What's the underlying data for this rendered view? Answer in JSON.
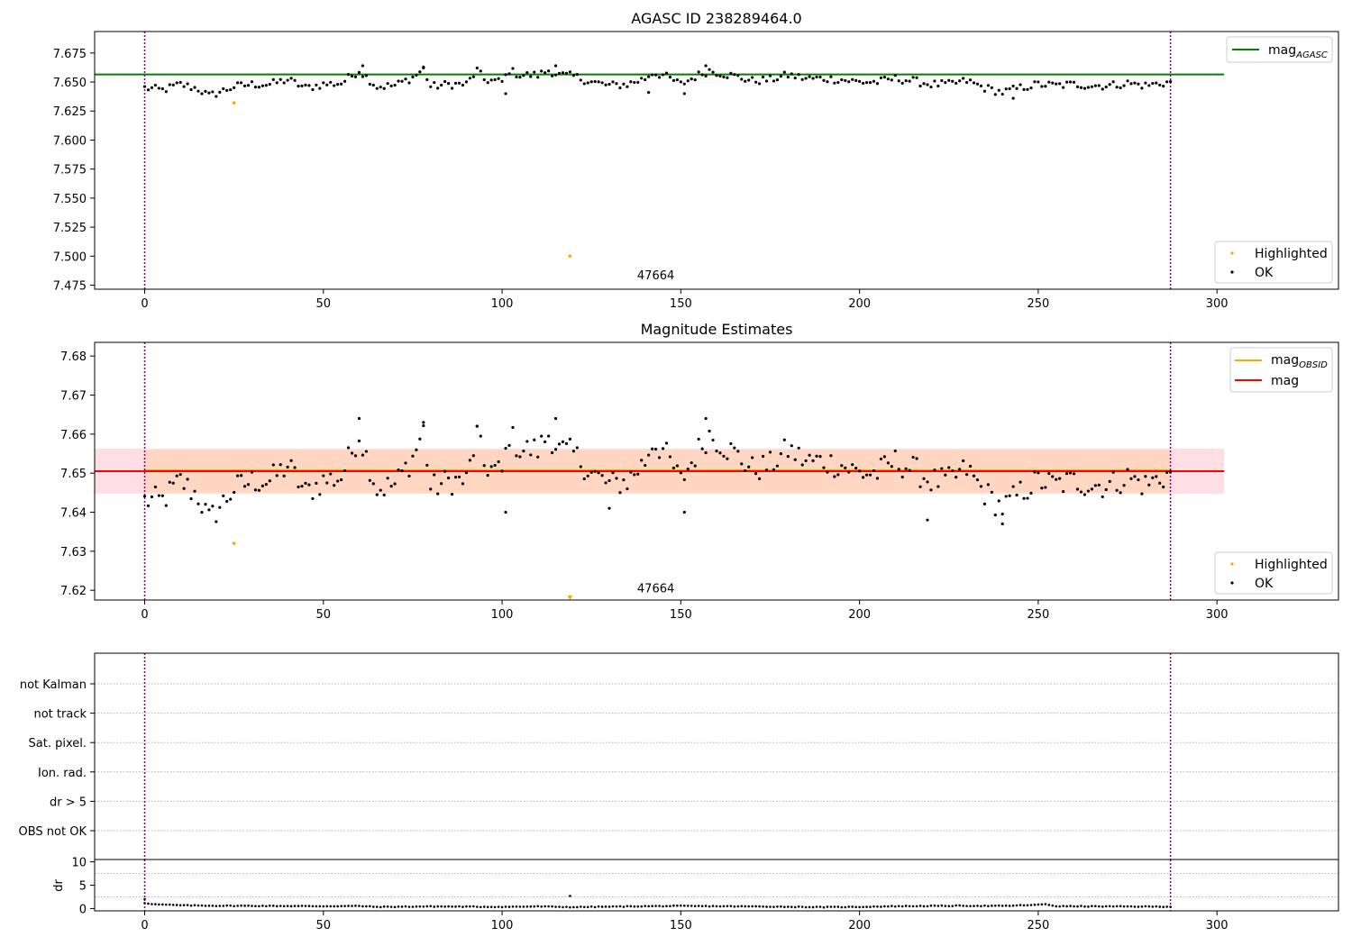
{
  "colors": {
    "agasc_line": "#008000",
    "obs_line": "#ffa500",
    "mean_line": "#ff0000",
    "band_outer": "#ffc0cb",
    "band_inner": "#ffd5bb",
    "highlight": "#ffa500",
    "ok": "#000000",
    "vline": "#800080"
  },
  "chart_data": [
    {
      "type": "scatter",
      "title": "AGASC ID 238289464.0",
      "xlim": [
        -14,
        334
      ],
      "ylim": [
        7.4715,
        7.6935
      ],
      "xticks": [
        "0",
        "50",
        "100",
        "150",
        "200",
        "250",
        "300"
      ],
      "yticks": [
        "7.475",
        "7.500",
        "7.525",
        "7.550",
        "7.575",
        "7.600",
        "7.625",
        "7.650",
        "7.675"
      ],
      "hline": {
        "label": "mag",
        "subscript": "AGASC",
        "y": 7.6565,
        "x_range": [
          -14,
          302
        ]
      },
      "vlines": [
        0,
        287
      ],
      "annotation": {
        "text": "47664",
        "x": 143,
        "y": 7.48
      },
      "legend": [
        {
          "label": "Highlighted"
        },
        {
          "label": "OK"
        }
      ],
      "highlighted_points": [
        [
          25,
          7.632
        ],
        [
          119,
          7.5
        ]
      ],
      "ok_anchors": [
        [
          0,
          7.645
        ],
        [
          5,
          7.643
        ],
        [
          10,
          7.648
        ],
        [
          15,
          7.644
        ],
        [
          18,
          7.638
        ],
        [
          25,
          7.646
        ],
        [
          30,
          7.648
        ],
        [
          35,
          7.648
        ],
        [
          40,
          7.652
        ],
        [
          45,
          7.645
        ],
        [
          50,
          7.648
        ],
        [
          55,
          7.649
        ],
        [
          60,
          7.66
        ],
        [
          65,
          7.646
        ],
        [
          70,
          7.647
        ],
        [
          75,
          7.654
        ],
        [
          78,
          7.661
        ],
        [
          80,
          7.646
        ],
        [
          85,
          7.648
        ],
        [
          90,
          7.648
        ],
        [
          93,
          7.66
        ],
        [
          95,
          7.652
        ],
        [
          100,
          7.65
        ],
        [
          102,
          7.66
        ],
        [
          105,
          7.656
        ],
        [
          110,
          7.656
        ],
        [
          113,
          7.66
        ],
        [
          116,
          7.656
        ],
        [
          120,
          7.655
        ],
        [
          125,
          7.65
        ],
        [
          130,
          7.647
        ],
        [
          135,
          7.648
        ],
        [
          140,
          7.653
        ],
        [
          142,
          7.658
        ],
        [
          145,
          7.656
        ],
        [
          150,
          7.648
        ],
        [
          155,
          7.656
        ],
        [
          158,
          7.66
        ],
        [
          162,
          7.657
        ],
        [
          165,
          7.655
        ],
        [
          170,
          7.651
        ],
        [
          175,
          7.652
        ],
        [
          180,
          7.656
        ],
        [
          185,
          7.653
        ],
        [
          190,
          7.653
        ],
        [
          195,
          7.652
        ],
        [
          200,
          7.65
        ],
        [
          205,
          7.65
        ],
        [
          210,
          7.653
        ],
        [
          215,
          7.651
        ],
        [
          220,
          7.648
        ],
        [
          225,
          7.648
        ],
        [
          230,
          7.651
        ],
        [
          235,
          7.645
        ],
        [
          240,
          7.641
        ],
        [
          245,
          7.645
        ],
        [
          250,
          7.648
        ],
        [
          255,
          7.647
        ],
        [
          260,
          7.648
        ],
        [
          265,
          7.647
        ],
        [
          270,
          7.647
        ],
        [
          275,
          7.649
        ],
        [
          280,
          7.647
        ],
        [
          287,
          7.65
        ]
      ],
      "ok_outliers": [
        [
          61,
          7.664
        ],
        [
          78,
          7.663
        ],
        [
          101,
          7.64
        ],
        [
          115,
          7.664
        ],
        [
          141,
          7.641
        ],
        [
          151,
          7.64
        ],
        [
          157,
          7.664
        ],
        [
          243,
          7.636
        ]
      ]
    },
    {
      "type": "scatter",
      "title": "Magnitude Estimates",
      "xlim": [
        -14,
        334
      ],
      "ylim": [
        7.6175,
        7.6835
      ],
      "xticks": [
        "0",
        "50",
        "100",
        "150",
        "200",
        "250",
        "300"
      ],
      "yticks": [
        "7.62",
        "7.63",
        "7.64",
        "7.65",
        "7.66",
        "7.67",
        "7.68"
      ],
      "mean_line": {
        "label": "mag",
        "y": 7.6505,
        "x_range": [
          -14,
          302
        ]
      },
      "obs_line": {
        "label": "mag",
        "subscript": "OBSID",
        "y": 7.6505,
        "x_range": [
          0,
          287
        ]
      },
      "band_outer": [
        7.6447,
        7.6563
      ],
      "band_inner": [
        7.645,
        7.656
      ],
      "vlines": [
        0,
        287
      ],
      "annotation": {
        "text": "47664",
        "x": 143,
        "y": 7.6195
      },
      "legend": [
        {
          "label": "Highlighted"
        },
        {
          "label": "OK"
        }
      ],
      "highlighted_points": [
        [
          25,
          7.632
        ]
      ],
      "highlighted_offscale": [
        [
          119,
          7.618
        ]
      ],
      "ok_anchors": [
        [
          0,
          7.643
        ],
        [
          5,
          7.643
        ],
        [
          10,
          7.648
        ],
        [
          15,
          7.644
        ],
        [
          18,
          7.638
        ],
        [
          25,
          7.646
        ],
        [
          30,
          7.648
        ],
        [
          35,
          7.648
        ],
        [
          40,
          7.652
        ],
        [
          45,
          7.645
        ],
        [
          50,
          7.648
        ],
        [
          55,
          7.649
        ],
        [
          60,
          7.66
        ],
        [
          65,
          7.646
        ],
        [
          70,
          7.647
        ],
        [
          75,
          7.654
        ],
        [
          78,
          7.661
        ],
        [
          80,
          7.646
        ],
        [
          85,
          7.648
        ],
        [
          90,
          7.648
        ],
        [
          93,
          7.66
        ],
        [
          95,
          7.652
        ],
        [
          100,
          7.65
        ],
        [
          102,
          7.66
        ],
        [
          105,
          7.656
        ],
        [
          110,
          7.656
        ],
        [
          113,
          7.66
        ],
        [
          116,
          7.656
        ],
        [
          120,
          7.655
        ],
        [
          125,
          7.65
        ],
        [
          130,
          7.647
        ],
        [
          135,
          7.648
        ],
        [
          140,
          7.653
        ],
        [
          142,
          7.658
        ],
        [
          145,
          7.656
        ],
        [
          150,
          7.648
        ],
        [
          155,
          7.656
        ],
        [
          158,
          7.66
        ],
        [
          162,
          7.657
        ],
        [
          165,
          7.655
        ],
        [
          170,
          7.651
        ],
        [
          175,
          7.652
        ],
        [
          180,
          7.656
        ],
        [
          185,
          7.653
        ],
        [
          190,
          7.653
        ],
        [
          195,
          7.652
        ],
        [
          200,
          7.65
        ],
        [
          205,
          7.65
        ],
        [
          210,
          7.653
        ],
        [
          215,
          7.651
        ],
        [
          220,
          7.648
        ],
        [
          225,
          7.648
        ],
        [
          230,
          7.651
        ],
        [
          235,
          7.645
        ],
        [
          240,
          7.641
        ],
        [
          245,
          7.645
        ],
        [
          250,
          7.648
        ],
        [
          255,
          7.647
        ],
        [
          260,
          7.648
        ],
        [
          265,
          7.647
        ],
        [
          270,
          7.647
        ],
        [
          275,
          7.649
        ],
        [
          280,
          7.647
        ],
        [
          287,
          7.65
        ]
      ],
      "ok_outliers": [
        [
          60,
          7.664
        ],
        [
          78,
          7.663
        ],
        [
          93,
          7.662
        ],
        [
          101,
          7.64
        ],
        [
          115,
          7.664
        ],
        [
          130,
          7.641
        ],
        [
          151,
          7.64
        ],
        [
          157,
          7.664
        ],
        [
          219,
          7.638
        ],
        [
          240,
          7.637
        ]
      ]
    },
    {
      "type": "scatter",
      "title": "",
      "xlim": [
        -14,
        334
      ],
      "category_labels": [
        "not Kalman",
        "not track",
        "Sat. pixel.",
        "Ion. rad.",
        "dr > 5",
        "OBS not OK"
      ],
      "vlines": [
        0,
        287
      ]
    },
    {
      "type": "scatter",
      "title": "",
      "ylabel": "dr",
      "xlim": [
        -14,
        334
      ],
      "ylim": [
        -0.5,
        10.5
      ],
      "xticks": [
        "0",
        "50",
        "100",
        "150",
        "200",
        "250",
        "300"
      ],
      "yticks": [
        "0",
        "5",
        "10"
      ],
      "gridlines": [
        7.5,
        2.5
      ],
      "vlines": [
        0,
        287
      ],
      "dr_anchors": [
        [
          0,
          1.2
        ],
        [
          3,
          0.9
        ],
        [
          10,
          0.7
        ],
        [
          20,
          0.6
        ],
        [
          40,
          0.55
        ],
        [
          50,
          0.5
        ],
        [
          60,
          0.55
        ],
        [
          65,
          0.35
        ],
        [
          80,
          0.45
        ],
        [
          90,
          0.4
        ],
        [
          100,
          0.35
        ],
        [
          110,
          0.45
        ],
        [
          120,
          0.3
        ],
        [
          140,
          0.5
        ],
        [
          150,
          0.55
        ],
        [
          170,
          0.45
        ],
        [
          190,
          0.3
        ],
        [
          200,
          0.35
        ],
        [
          210,
          0.5
        ],
        [
          230,
          0.6
        ],
        [
          240,
          0.55
        ],
        [
          250,
          0.8
        ],
        [
          252,
          0.95
        ],
        [
          255,
          0.5
        ],
        [
          287,
          0.4
        ]
      ],
      "dr_outliers": [
        [
          0,
          2.0
        ],
        [
          119,
          2.7
        ]
      ]
    }
  ]
}
